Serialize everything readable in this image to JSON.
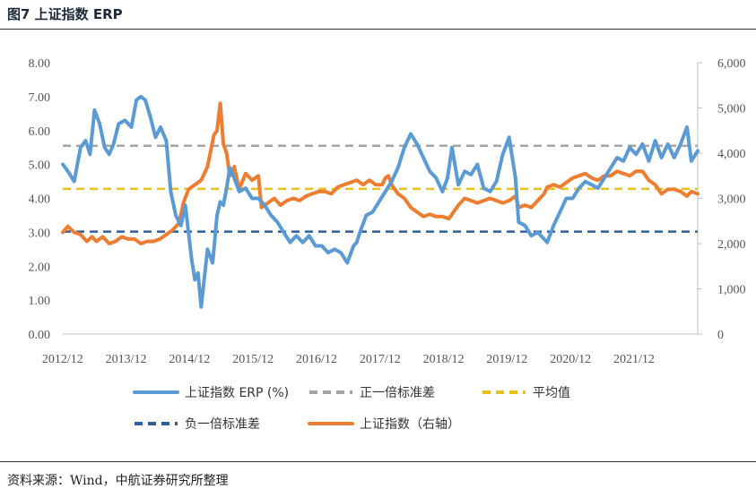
{
  "header": {
    "title": "图7  上证指数 ERP"
  },
  "footer": {
    "source": "资料来源：Wind，中航证券研究所整理"
  },
  "chart_data": {
    "type": "line",
    "title": "上证指数 ERP",
    "x_ticks": [
      "2012/12",
      "2013/12",
      "2014/12",
      "2015/12",
      "2016/12",
      "2017/12",
      "2018/12",
      "2019/12",
      "2020/12",
      "2021/12"
    ],
    "x_range": [
      2012.92,
      2022.92
    ],
    "y_left": {
      "range": [
        0,
        8
      ],
      "ticks": [
        "0.00",
        "1.00",
        "2.00",
        "3.00",
        "4.00",
        "5.00",
        "6.00",
        "7.00",
        "8.00"
      ]
    },
    "y_right": {
      "range": [
        0,
        6000
      ],
      "ticks": [
        "0",
        "1,000",
        "2,000",
        "3,000",
        "4,000",
        "5,000",
        "6,000"
      ]
    },
    "series": [
      {
        "name": "上证指数 ERP (%)",
        "axis": "left",
        "color": "#5b9bd5",
        "style": "solid",
        "x": [
          2012.92,
          2013.0,
          2013.1,
          2013.2,
          2013.28,
          2013.35,
          2013.42,
          2013.5,
          2013.58,
          2013.65,
          2013.72,
          2013.8,
          2013.9,
          2014.0,
          2014.08,
          2014.15,
          2014.22,
          2014.3,
          2014.38,
          2014.46,
          2014.55,
          2014.62,
          2014.7,
          2014.78,
          2014.85,
          2014.9,
          2014.95,
          2015.0,
          2015.05,
          2015.1,
          2015.2,
          2015.28,
          2015.35,
          2015.4,
          2015.45,
          2015.5,
          2015.55,
          2015.62,
          2015.7,
          2015.8,
          2015.9,
          2016.0,
          2016.1,
          2016.2,
          2016.3,
          2016.4,
          2016.5,
          2016.6,
          2016.7,
          2016.8,
          2016.9,
          2017.0,
          2017.1,
          2017.2,
          2017.3,
          2017.4,
          2017.5,
          2017.55,
          2017.6,
          2017.7,
          2017.8,
          2017.9,
          2018.0,
          2018.1,
          2018.2,
          2018.3,
          2018.4,
          2018.5,
          2018.6,
          2018.7,
          2018.8,
          2018.9,
          2018.98,
          2019.05,
          2019.15,
          2019.25,
          2019.35,
          2019.45,
          2019.55,
          2019.65,
          2019.75,
          2019.85,
          2019.95,
          2020.05,
          2020.1,
          2020.2,
          2020.3,
          2020.4,
          2020.5,
          2020.55,
          2020.65,
          2020.75,
          2020.85,
          2020.95,
          2021.05,
          2021.15,
          2021.25,
          2021.35,
          2021.45,
          2021.55,
          2021.65,
          2021.75,
          2021.85,
          2021.95,
          2022.05,
          2022.15,
          2022.25,
          2022.35,
          2022.45,
          2022.55,
          2022.65,
          2022.75,
          2022.82,
          2022.92
        ],
        "values": [
          5.0,
          4.8,
          4.5,
          5.5,
          5.7,
          5.3,
          6.6,
          6.2,
          5.5,
          5.3,
          5.6,
          6.2,
          6.3,
          6.1,
          6.9,
          7.0,
          6.9,
          6.4,
          5.8,
          6.1,
          5.7,
          4.2,
          3.5,
          3.2,
          3.8,
          3.0,
          2.2,
          1.6,
          1.8,
          0.8,
          2.5,
          2.1,
          3.5,
          3.9,
          3.8,
          4.3,
          4.9,
          4.6,
          4.2,
          4.3,
          4.0,
          4.0,
          3.8,
          3.5,
          3.3,
          3.0,
          2.7,
          2.9,
          2.7,
          2.9,
          2.6,
          2.6,
          2.4,
          2.5,
          2.4,
          2.1,
          2.6,
          2.7,
          3.0,
          3.5,
          3.6,
          3.9,
          4.2,
          4.5,
          4.9,
          5.5,
          5.9,
          5.6,
          5.2,
          4.8,
          4.6,
          4.2,
          4.6,
          5.5,
          4.4,
          4.8,
          4.7,
          5.0,
          4.3,
          4.2,
          4.5,
          5.3,
          5.8,
          4.6,
          3.3,
          3.2,
          2.9,
          3.0,
          2.8,
          2.7,
          3.2,
          3.6,
          4.0,
          4.0,
          4.3,
          4.5,
          4.4,
          4.3,
          4.6,
          4.9,
          5.2,
          5.1,
          5.5,
          5.3,
          5.6,
          5.1,
          5.7,
          5.2,
          5.6,
          5.2,
          5.6,
          6.1,
          5.1,
          5.4
        ]
      },
      {
        "name": "正一倍标准差",
        "axis": "left",
        "color": "#a5a5a5",
        "style": "dashed",
        "value": 5.55
      },
      {
        "name": "平均值",
        "axis": "left",
        "color": "#e8c120",
        "style": "dashed",
        "value": 4.28
      },
      {
        "name": "负一倍标准差",
        "axis": "left",
        "color": "#2f5e9e",
        "style": "dashed",
        "value": 3.02
      },
      {
        "name": "上证指数（右轴）",
        "axis": "right",
        "color": "#ed7d31",
        "style": "solid",
        "x": [
          2012.92,
          2013.0,
          2013.1,
          2013.2,
          2013.3,
          2013.38,
          2013.45,
          2013.55,
          2013.65,
          2013.75,
          2013.85,
          2013.95,
          2014.05,
          2014.15,
          2014.25,
          2014.35,
          2014.45,
          2014.55,
          2014.65,
          2014.75,
          2014.82,
          2014.9,
          2015.0,
          2015.1,
          2015.2,
          2015.3,
          2015.35,
          2015.4,
          2015.45,
          2015.5,
          2015.55,
          2015.62,
          2015.7,
          2015.8,
          2015.9,
          2016.0,
          2016.05,
          2016.15,
          2016.25,
          2016.35,
          2016.45,
          2016.55,
          2016.65,
          2016.75,
          2016.85,
          2016.95,
          2017.05,
          2017.15,
          2017.25,
          2017.35,
          2017.45,
          2017.55,
          2017.65,
          2017.75,
          2017.85,
          2017.95,
          2018.0,
          2018.05,
          2018.1,
          2018.2,
          2018.3,
          2018.4,
          2018.5,
          2018.6,
          2018.7,
          2018.8,
          2018.9,
          2019.0,
          2019.05,
          2019.15,
          2019.25,
          2019.35,
          2019.45,
          2019.55,
          2019.65,
          2019.75,
          2019.85,
          2019.95,
          2020.05,
          2020.1,
          2020.2,
          2020.3,
          2020.4,
          2020.5,
          2020.55,
          2020.65,
          2020.75,
          2020.85,
          2020.95,
          2021.05,
          2021.15,
          2021.25,
          2021.35,
          2021.45,
          2021.55,
          2021.65,
          2021.75,
          2021.85,
          2021.95,
          2022.05,
          2022.15,
          2022.25,
          2022.35,
          2022.45,
          2022.55,
          2022.65,
          2022.75,
          2022.82,
          2022.92
        ],
        "values": [
          2250,
          2380,
          2250,
          2200,
          2050,
          2150,
          2050,
          2150,
          2000,
          2050,
          2150,
          2100,
          2100,
          2000,
          2050,
          2050,
          2100,
          2200,
          2300,
          2450,
          2900,
          3200,
          3300,
          3400,
          3700,
          4400,
          4500,
          5100,
          4200,
          4000,
          3500,
          3700,
          3200,
          3550,
          3400,
          3500,
          2800,
          2900,
          3000,
          2850,
          2950,
          3000,
          2950,
          3050,
          3100,
          3150,
          3150,
          3100,
          3250,
          3300,
          3350,
          3400,
          3300,
          3400,
          3300,
          3300,
          3450,
          3500,
          3300,
          3100,
          3000,
          2800,
          2700,
          2600,
          2650,
          2600,
          2600,
          2550,
          2650,
          2850,
          3000,
          2950,
          2900,
          2950,
          3000,
          2950,
          2900,
          2950,
          3050,
          2800,
          2850,
          2800,
          2950,
          3100,
          3250,
          3300,
          3250,
          3350,
          3450,
          3500,
          3550,
          3450,
          3400,
          3500,
          3500,
          3600,
          3550,
          3500,
          3600,
          3600,
          3400,
          3300,
          3100,
          3200,
          3200,
          3150,
          3050,
          3150,
          3100
        ]
      }
    ]
  }
}
